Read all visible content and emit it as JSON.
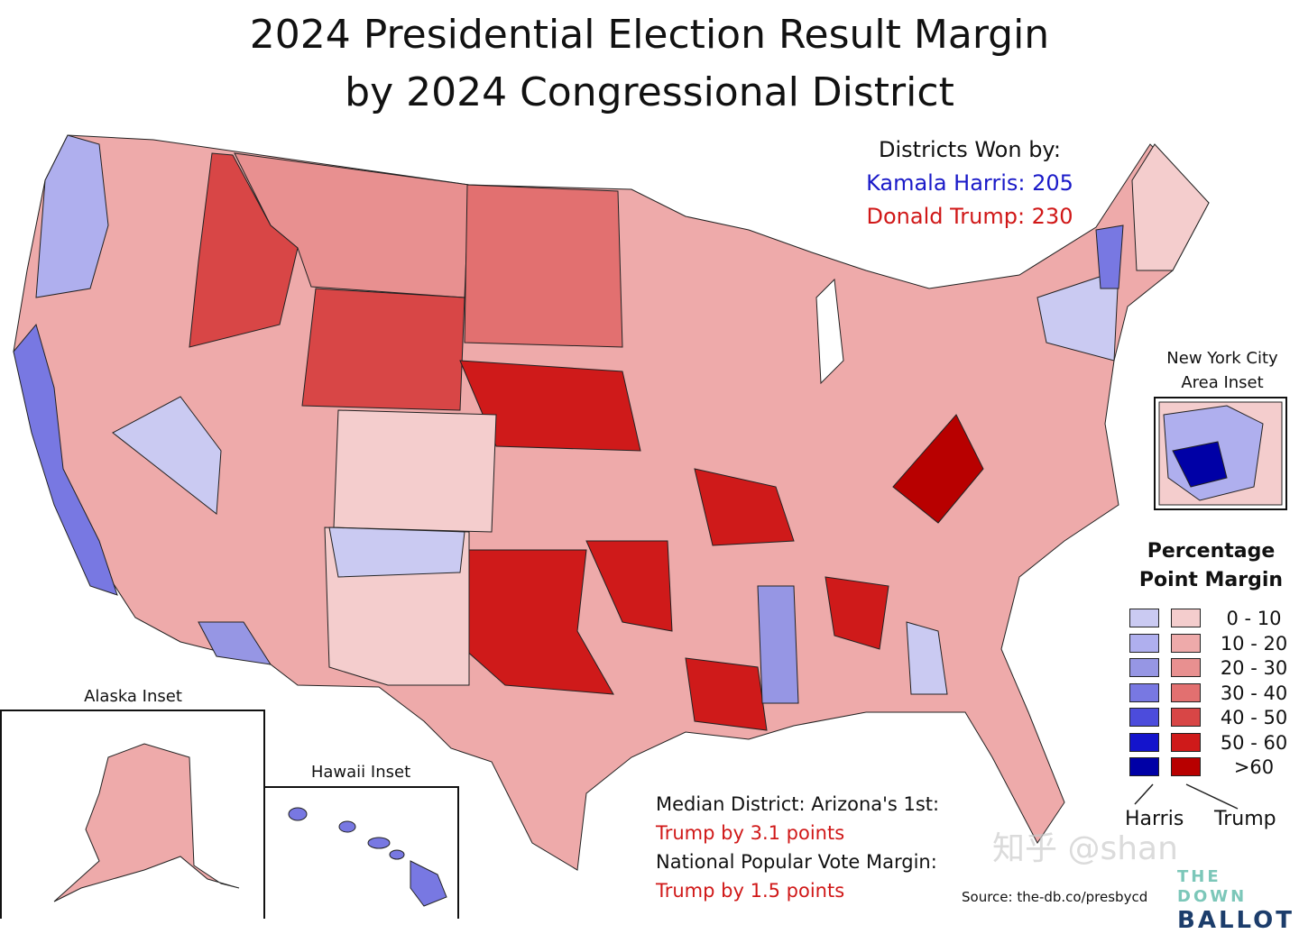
{
  "title": {
    "line1": "2024 Presidential Election Result Margin",
    "line2": "by 2024 Congressional District"
  },
  "districts_won": {
    "heading": "Districts Won by:",
    "harris": "Kamala Harris: 205",
    "trump": "Donald Trump: 230",
    "harris_color": "#1a1ac8",
    "trump_color": "#d01818"
  },
  "insets": {
    "nyc": "New York City Area Inset",
    "alaska": "Alaska Inset",
    "hawaii": "Hawaii Inset"
  },
  "legend": {
    "title": "Percentage Point Margin",
    "ranges": [
      "0 - 10",
      "10 - 20",
      "20 - 30",
      "30 - 40",
      "40 - 50",
      "50 - 60",
      ">60"
    ],
    "harris_colors": [
      "#cacaf2",
      "#afafee",
      "#9696e4",
      "#7878e2",
      "#4c4cdc",
      "#1414cc",
      "#0000a6"
    ],
    "trump_colors": [
      "#f4cdcd",
      "#eeaaaa",
      "#e89090",
      "#e27070",
      "#d84646",
      "#cf1a1a",
      "#b80000"
    ],
    "harris_label": "Harris",
    "trump_label": "Trump"
  },
  "notes": {
    "median_label": "Median District: Arizona's 1st:",
    "median_value": "Trump by 3.1 points",
    "popular_label": "National Popular Vote Margin:",
    "popular_value": "Trump by 1.5 points"
  },
  "source": "Source: the-db.co/presbycd",
  "logo": {
    "top": "THE DOWN",
    "bottom": "BALLOT"
  },
  "watermark": "知乎 @shan"
}
